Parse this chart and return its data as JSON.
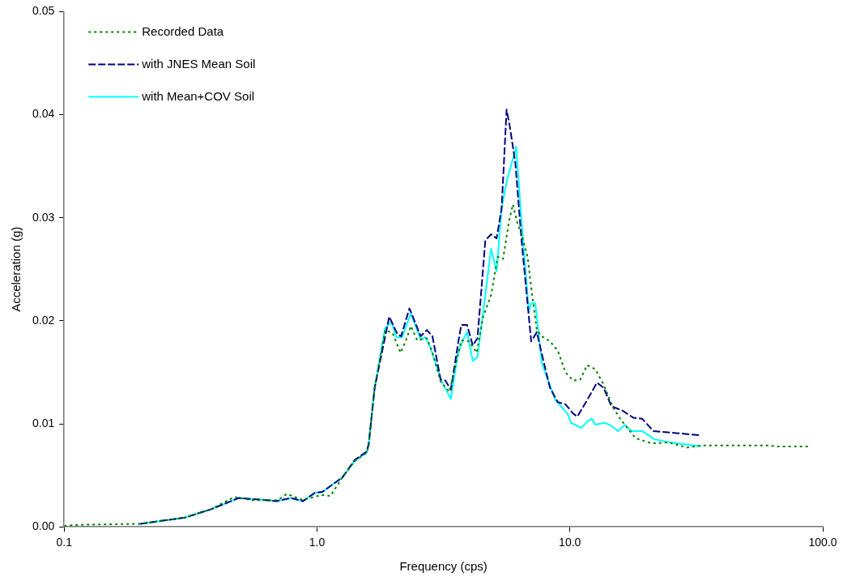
{
  "chart_data": {
    "type": "line",
    "xlabel": "Frequency (cps)",
    "ylabel": "Acceleration (g)",
    "log": "x",
    "grid": false,
    "legend": "top left",
    "marker": "none",
    "xlim": [
      0.1,
      100
    ],
    "xticks": [
      {
        "value": 0.1,
        "label": "0.1"
      },
      {
        "value": 1,
        "label": "1.0"
      },
      {
        "value": 10,
        "label": "10.0"
      },
      {
        "value": 100,
        "label": "100.0"
      }
    ],
    "ylim": [
      0,
      0.05
    ],
    "yticks": [
      {
        "value": 0,
        "label": "0.00"
      },
      {
        "value": 0.01,
        "label": "0.01"
      },
      {
        "value": 0.02,
        "label": "0.02"
      },
      {
        "value": 0.03,
        "label": "0.03"
      },
      {
        "value": 0.04,
        "label": "0.04"
      },
      {
        "value": 0.05,
        "label": "0.05"
      }
    ],
    "series": [
      {
        "name": "Recorded Data",
        "color": "#008000",
        "line_style": "dotted",
        "x": [
          0.1,
          0.116,
          0.2,
          0.3,
          0.38,
          0.47,
          0.55,
          0.7,
          0.76,
          0.88,
          1.04,
          1.13,
          1.26,
          1.41,
          1.57,
          1.6,
          1.69,
          1.86,
          1.99,
          2.14,
          2.24,
          2.35,
          2.49,
          2.72,
          2.86,
          3.08,
          3.34,
          3.72,
          4.0,
          4.28,
          4.54,
          4.88,
          5.18,
          5.44,
          5.74,
          5.95,
          6.18,
          6.54,
          6.8,
          7.05,
          7.4,
          7.74,
          8.34,
          8.96,
          9.6,
          10.3,
          11,
          11.7,
          12.6,
          13.6,
          14.8,
          15.9,
          18.2,
          21.1,
          24.5,
          29,
          33,
          47,
          61,
          66,
          89
        ],
        "values": [
          0.0001,
          0.0002,
          0.0003,
          0.0009,
          0.0017,
          0.0029,
          0.0026,
          0.0026,
          0.0032,
          0.0026,
          0.0031,
          0.003,
          0.0048,
          0.0064,
          0.0072,
          0.0078,
          0.0135,
          0.0191,
          0.0188,
          0.0169,
          0.018,
          0.0195,
          0.0181,
          0.0183,
          0.0169,
          0.0141,
          0.0131,
          0.0181,
          0.018,
          0.0169,
          0.0204,
          0.0225,
          0.0262,
          0.026,
          0.0296,
          0.0313,
          0.0296,
          0.0278,
          0.0262,
          0.023,
          0.0191,
          0.0185,
          0.018,
          0.0171,
          0.015,
          0.0142,
          0.0143,
          0.0157,
          0.0153,
          0.0138,
          0.0116,
          0.0104,
          0.0086,
          0.0081,
          0.0082,
          0.0077,
          0.0079,
          0.0079,
          0.0079,
          0.0078,
          0.0078
        ]
      },
      {
        "name": "with JNES Mean Soil",
        "color": "#000080",
        "line_style": "dashed",
        "x": [
          0.2,
          0.3,
          0.38,
          0.49,
          0.63,
          0.69,
          0.79,
          0.88,
          0.98,
          1.05,
          1.26,
          1.41,
          1.57,
          1.6,
          1.69,
          1.93,
          2.08,
          2.15,
          2.32,
          2.57,
          2.72,
          2.86,
          3.08,
          3.22,
          3.38,
          3.64,
          3.72,
          3.92,
          4.13,
          4.31,
          4.63,
          4.88,
          5.13,
          5.37,
          5.62,
          5.79,
          6.08,
          6.44,
          7.03,
          7.4,
          7.86,
          8.34,
          8.96,
          9.6,
          10.3,
          10.7,
          11.7,
          12.8,
          13.6,
          14.6,
          16.1,
          17.8,
          19.3,
          21.4,
          26.3,
          32.7
        ],
        "values": [
          0.0003,
          0.0009,
          0.0017,
          0.0028,
          0.0026,
          0.0025,
          0.0028,
          0.0025,
          0.0033,
          0.0034,
          0.0048,
          0.0065,
          0.0073,
          0.008,
          0.0135,
          0.0204,
          0.0187,
          0.0185,
          0.0212,
          0.0185,
          0.0191,
          0.0185,
          0.0143,
          0.0142,
          0.0133,
          0.0183,
          0.0196,
          0.0196,
          0.0176,
          0.0183,
          0.0278,
          0.0284,
          0.028,
          0.0309,
          0.0405,
          0.0388,
          0.0354,
          0.0278,
          0.018,
          0.0189,
          0.0161,
          0.0135,
          0.0121,
          0.0119,
          0.011,
          0.0107,
          0.0123,
          0.014,
          0.0135,
          0.0117,
          0.0113,
          0.0106,
          0.0105,
          0.0093,
          0.0091,
          0.0089
        ]
      },
      {
        "name": "with Mean+COV Soil",
        "color": "#00ffff",
        "line_style": "solid",
        "x": [
          0.2,
          0.3,
          0.38,
          0.49,
          0.63,
          0.69,
          0.79,
          0.88,
          0.98,
          1.05,
          1.26,
          1.41,
          1.57,
          1.6,
          1.69,
          1.86,
          1.97,
          2.06,
          2.17,
          2.35,
          2.57,
          2.69,
          2.82,
          3.1,
          3.38,
          3.6,
          3.77,
          3.92,
          4.13,
          4.31,
          4.88,
          5.13,
          5.37,
          5.62,
          6.13,
          6.44,
          6.88,
          7.03,
          7.3,
          7.74,
          8.76,
          9.78,
          10.1,
          11.1,
          11.7,
          12.2,
          12.6,
          13.6,
          14.4,
          15.5,
          16.5,
          17.5,
          19.3,
          21.6,
          25,
          33
        ],
        "values": [
          0.0003,
          0.0009,
          0.0017,
          0.0028,
          0.0026,
          0.0025,
          0.0028,
          0.0025,
          0.0033,
          0.0034,
          0.0048,
          0.0064,
          0.0072,
          0.008,
          0.0135,
          0.0193,
          0.0199,
          0.0184,
          0.0184,
          0.0207,
          0.0182,
          0.0184,
          0.0173,
          0.0142,
          0.0124,
          0.0167,
          0.0181,
          0.0189,
          0.0161,
          0.0165,
          0.027,
          0.0248,
          0.0309,
          0.0335,
          0.0369,
          0.0296,
          0.0209,
          0.0217,
          0.0217,
          0.0159,
          0.0123,
          0.011,
          0.0101,
          0.0096,
          0.0102,
          0.0105,
          0.0099,
          0.0101,
          0.0099,
          0.0093,
          0.0099,
          0.0093,
          0.0093,
          0.0085,
          0.0082,
          0.0078
        ]
      }
    ]
  }
}
